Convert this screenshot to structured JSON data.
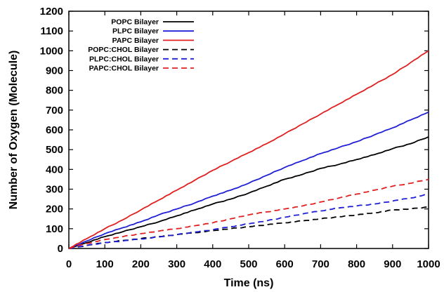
{
  "chart_data": {
    "type": "line",
    "title": "",
    "xlabel": "Time (ns)",
    "ylabel": "Number of Oxygen (Molecule)",
    "xlim": [
      0,
      1000
    ],
    "ylim": [
      0,
      1200
    ],
    "xticks": [
      0,
      100,
      200,
      300,
      400,
      500,
      600,
      700,
      800,
      900,
      1000
    ],
    "yticks": [
      0,
      100,
      200,
      300,
      400,
      500,
      600,
      700,
      800,
      900,
      1000,
      1100,
      1200
    ],
    "grid": false,
    "legend_position": "top-left",
    "series": [
      {
        "name": "POPC Bilayer",
        "color": "#000000",
        "dash": "solid",
        "x": [
          0,
          50,
          100,
          150,
          200,
          250,
          300,
          350,
          400,
          450,
          500,
          550,
          600,
          650,
          700,
          750,
          800,
          850,
          900,
          950,
          1000
        ],
        "y": [
          0,
          30,
          60,
          85,
          110,
          135,
          165,
          195,
          225,
          250,
          280,
          315,
          350,
          375,
          405,
          425,
          450,
          475,
          505,
          530,
          565
        ]
      },
      {
        "name": "PLPC Bilayer",
        "color": "#1f1fd6",
        "dash": "solid",
        "x": [
          0,
          50,
          100,
          150,
          200,
          250,
          300,
          350,
          400,
          450,
          500,
          550,
          600,
          650,
          700,
          750,
          800,
          850,
          900,
          950,
          1000
        ],
        "y": [
          0,
          38,
          75,
          105,
          135,
          170,
          200,
          230,
          265,
          295,
          330,
          370,
          410,
          445,
          480,
          510,
          540,
          575,
          610,
          650,
          690
        ]
      },
      {
        "name": "PAPC Bilayer",
        "color": "#e02020",
        "dash": "solid",
        "x": [
          0,
          50,
          100,
          150,
          200,
          250,
          300,
          350,
          400,
          450,
          500,
          550,
          600,
          650,
          700,
          750,
          800,
          850,
          900,
          950,
          1000
        ],
        "y": [
          0,
          50,
          100,
          145,
          195,
          245,
          295,
          345,
          395,
          440,
          485,
          530,
          580,
          630,
          680,
          730,
          780,
          830,
          880,
          940,
          1000
        ]
      },
      {
        "name": "POPC:CHOL Bilayer",
        "color": "#000000",
        "dash": "dashed",
        "x": [
          0,
          50,
          100,
          150,
          200,
          250,
          300,
          350,
          400,
          450,
          500,
          550,
          600,
          650,
          700,
          750,
          800,
          850,
          900,
          950,
          1000
        ],
        "y": [
          0,
          15,
          30,
          40,
          50,
          60,
          70,
          80,
          90,
          100,
          110,
          120,
          130,
          140,
          150,
          160,
          170,
          180,
          195,
          200,
          210
        ]
      },
      {
        "name": "PLPC:CHOL Bilayer",
        "color": "#1f1fd6",
        "dash": "dashed",
        "x": [
          0,
          50,
          100,
          150,
          200,
          250,
          300,
          350,
          400,
          450,
          500,
          550,
          600,
          650,
          700,
          750,
          800,
          850,
          900,
          950,
          1000
        ],
        "y": [
          0,
          15,
          30,
          38,
          48,
          58,
          70,
          83,
          95,
          110,
          125,
          140,
          158,
          175,
          190,
          205,
          215,
          225,
          240,
          255,
          275
        ]
      },
      {
        "name": "PAPC:CHOL Bilayer",
        "color": "#e02020",
        "dash": "dashed",
        "x": [
          0,
          50,
          100,
          150,
          200,
          250,
          300,
          350,
          400,
          450,
          500,
          550,
          600,
          650,
          700,
          750,
          800,
          850,
          900,
          950,
          1000
        ],
        "y": [
          0,
          25,
          45,
          60,
          75,
          88,
          100,
          115,
          130,
          150,
          170,
          185,
          200,
          215,
          235,
          255,
          275,
          295,
          315,
          330,
          350
        ]
      }
    ]
  }
}
